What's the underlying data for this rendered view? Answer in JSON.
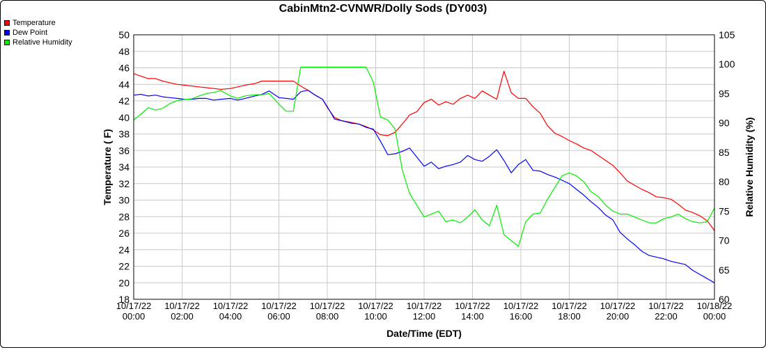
{
  "chart_data": {
    "type": "line",
    "title": "CabinMtn2-CVNWR/Dolly Sods (DY003)",
    "xlabel": "Date/Time (EDT)",
    "ylabel_left": "Temperature ( F)",
    "ylabel_right": "Relative Humidity (%)",
    "ylim_left": [
      18,
      50
    ],
    "ylim_right": [
      60,
      105
    ],
    "yticks_left": [
      "18",
      "20",
      "22",
      "24",
      "26",
      "28",
      "30",
      "32",
      "34",
      "36",
      "38",
      "40",
      "42",
      "44",
      "46",
      "48",
      "50"
    ],
    "yticks_right": [
      "60",
      "65",
      "70",
      "75",
      "80",
      "85",
      "90",
      "95",
      "100",
      "105"
    ],
    "xlim": [
      0,
      24
    ],
    "xticks": [
      {
        "date": "10/17/22",
        "time": "00:00"
      },
      {
        "date": "10/17/22",
        "time": "02:00"
      },
      {
        "date": "10/17/22",
        "time": "04:00"
      },
      {
        "date": "10/17/22",
        "time": "06:00"
      },
      {
        "date": "10/17/22",
        "time": "08:00"
      },
      {
        "date": "10/17/22",
        "time": "10:00"
      },
      {
        "date": "10/17/22",
        "time": "12:00"
      },
      {
        "date": "10/17/22",
        "time": "14:00"
      },
      {
        "date": "10/17/22",
        "time": "16:00"
      },
      {
        "date": "10/17/22",
        "time": "18:00"
      },
      {
        "date": "10/17/22",
        "time": "20:00"
      },
      {
        "date": "10/17/22",
        "time": "22:00"
      },
      {
        "date": "10/18/22",
        "time": "00:00"
      }
    ],
    "grid": true,
    "legend_position": "top-left",
    "series": [
      {
        "name": "Temperature",
        "color": "#ff0000",
        "axis": "left",
        "x": [
          0,
          0.3,
          0.6,
          0.9,
          1.2,
          1.5,
          1.8,
          2.1,
          2.4,
          2.7,
          3,
          3.3,
          3.6,
          4,
          4.3,
          4.6,
          5,
          5.3,
          5.6,
          6,
          6.3,
          6.6,
          6.9,
          7.2,
          7.5,
          7.8,
          8,
          8.3,
          8.6,
          9,
          9.3,
          9.6,
          9.9,
          10.2,
          10.5,
          10.8,
          11.1,
          11.4,
          11.7,
          12,
          12.3,
          12.6,
          12.9,
          13.2,
          13.5,
          13.8,
          14.1,
          14.4,
          14.7,
          15,
          15.3,
          15.6,
          15.9,
          16.2,
          16.5,
          16.8,
          17.1,
          17.4,
          17.7,
          18,
          18.3,
          18.6,
          18.9,
          19.2,
          19.5,
          19.8,
          20.1,
          20.4,
          20.7,
          21,
          21.3,
          21.6,
          21.9,
          22.2,
          22.5,
          22.8,
          23.1,
          23.4,
          23.7,
          24
        ],
        "values": [
          45.3,
          45,
          44.7,
          44.7,
          44.4,
          44.2,
          44,
          43.9,
          43.8,
          43.7,
          43.6,
          43.5,
          43.4,
          43.5,
          43.7,
          43.9,
          44.1,
          44.4,
          44.4,
          44.4,
          44.4,
          44.4,
          43.8,
          43.3,
          42.7,
          42.2,
          41.2,
          40,
          39.6,
          39.4,
          39.2,
          38.9,
          38.5,
          37.9,
          37.8,
          38.2,
          39.2,
          40.3,
          40.7,
          41.8,
          42.2,
          41.5,
          41.9,
          41.6,
          42.3,
          42.7,
          42.3,
          43.2,
          42.7,
          42.2,
          45.6,
          43,
          42.3,
          42.3,
          41.3,
          40.5,
          39,
          38.1,
          37.7,
          37.2,
          36.8,
          36.3,
          36,
          35.4,
          34.8,
          34.2,
          33.3,
          32.3,
          31.8,
          31.3,
          30.9,
          30.4,
          30.3,
          30.1,
          29.5,
          28.8,
          28.5,
          28.1,
          27.5,
          26.3
        ]
      },
      {
        "name": "Dew Point",
        "color": "#0000ff",
        "axis": "left",
        "x": [
          0,
          0.3,
          0.6,
          0.9,
          1.2,
          1.5,
          1.8,
          2.1,
          2.4,
          2.7,
          3,
          3.3,
          3.6,
          4,
          4.3,
          4.6,
          5,
          5.3,
          5.6,
          6,
          6.3,
          6.6,
          6.9,
          7.2,
          7.5,
          7.8,
          8,
          8.3,
          8.6,
          9,
          9.3,
          9.6,
          9.9,
          10.2,
          10.5,
          10.8,
          11.1,
          11.4,
          11.7,
          12,
          12.3,
          12.6,
          12.9,
          13.2,
          13.5,
          13.8,
          14.1,
          14.4,
          14.7,
          15,
          15.3,
          15.6,
          15.9,
          16.2,
          16.5,
          16.8,
          17.1,
          17.4,
          17.7,
          18,
          18.3,
          18.6,
          18.9,
          19.2,
          19.5,
          19.8,
          20.1,
          20.4,
          20.7,
          21,
          21.3,
          21.6,
          21.9,
          22.2,
          22.5,
          22.8,
          23.1,
          23.4,
          23.7,
          24
        ],
        "values": [
          42.7,
          42.8,
          42.6,
          42.7,
          42.5,
          42.4,
          42.3,
          42.2,
          42.2,
          42.3,
          42.3,
          42.1,
          42.2,
          42.3,
          42.1,
          42.3,
          42.6,
          42.8,
          43.2,
          42.4,
          42.3,
          42.2,
          43.1,
          43.3,
          42.7,
          42.2,
          41.3,
          39.8,
          39.6,
          39.3,
          39.2,
          38.8,
          38.6,
          37.1,
          35.5,
          35.6,
          35.9,
          36.3,
          35.2,
          34.1,
          34.6,
          33.8,
          34.1,
          34.3,
          34.6,
          35.4,
          34.9,
          34.7,
          35.3,
          36.1,
          34.8,
          33.3,
          34.3,
          34.9,
          33.6,
          33.5,
          33.1,
          32.8,
          32.4,
          32,
          31.3,
          30.6,
          29.8,
          29.1,
          28.2,
          27.6,
          26.1,
          25.3,
          24.6,
          23.8,
          23.3,
          23.1,
          22.9,
          22.6,
          22.4,
          22.2,
          21.5,
          21,
          20.5,
          20
        ]
      },
      {
        "name": "Relative Humidity",
        "color": "#00ee00",
        "axis": "right",
        "x": [
          0,
          0.3,
          0.6,
          0.9,
          1.2,
          1.5,
          1.8,
          2.1,
          2.4,
          2.7,
          3,
          3.3,
          3.6,
          4,
          4.3,
          4.6,
          5,
          5.3,
          5.6,
          6,
          6.3,
          6.6,
          6.9,
          7.2,
          7.5,
          7.8,
          8,
          8.3,
          8.6,
          9,
          9.3,
          9.6,
          9.9,
          10.2,
          10.5,
          10.8,
          11.1,
          11.4,
          11.7,
          12,
          12.3,
          12.6,
          12.9,
          13.2,
          13.5,
          13.8,
          14.1,
          14.4,
          14.7,
          15,
          15.3,
          15.6,
          15.9,
          16.2,
          16.5,
          16.8,
          17.1,
          17.4,
          17.7,
          18,
          18.3,
          18.6,
          18.9,
          19.2,
          19.5,
          19.8,
          20.1,
          20.4,
          20.7,
          21,
          21.3,
          21.6,
          21.9,
          22.2,
          22.5,
          22.8,
          23.1,
          23.4,
          23.7,
          24
        ],
        "values": [
          90.5,
          91.5,
          92.6,
          92.2,
          92.5,
          93.3,
          93.8,
          94,
          94.1,
          94.6,
          95,
          95.2,
          95.5,
          94.6,
          94.2,
          94.6,
          94.8,
          94.8,
          95,
          93.2,
          92,
          92,
          99.5,
          99.5,
          99.5,
          99.5,
          99.5,
          99.5,
          99.5,
          99.5,
          99.5,
          99.5,
          97,
          91,
          90.5,
          89,
          82,
          78,
          76,
          74,
          74.5,
          75,
          73.2,
          73.5,
          73,
          74,
          75.2,
          73.5,
          72.5,
          76,
          71,
          70,
          69,
          73.2,
          74.5,
          74.7,
          77,
          79,
          81,
          81.5,
          81,
          80,
          78.3,
          77.5,
          76,
          75,
          74.5,
          74.5,
          74,
          73.5,
          73,
          73,
          73.7,
          74,
          74.5,
          73.7,
          73.2,
          73,
          73.2,
          75.5
        ]
      }
    ]
  }
}
